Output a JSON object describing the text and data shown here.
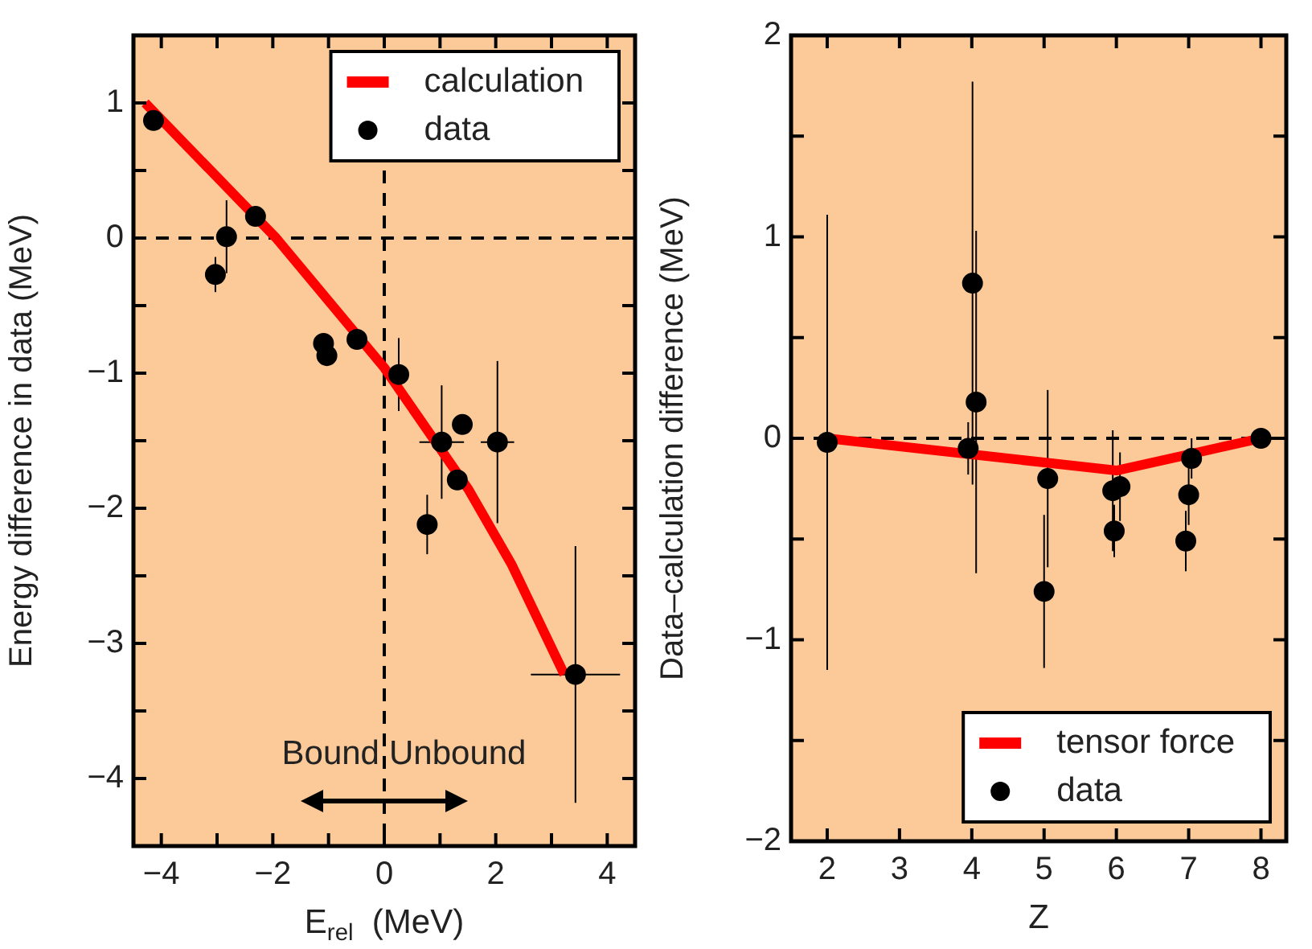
{
  "chart_data": [
    {
      "type": "scatter",
      "xlabel": "E$_{rel}$  (MeV)",
      "ylabel": "Energy difference in data (MeV)",
      "xlim": [
        -4.5,
        4.5
      ],
      "ylim": [
        -4.5,
        1.5
      ],
      "xticks": [
        -4,
        {
          "value": -3,
          "label": null
        },
        -2,
        {
          "value": -1,
          "label": null
        },
        0,
        {
          "value": 1,
          "label": null
        },
        2,
        {
          "value": 3,
          "label": null
        },
        4
      ],
      "yticks": [
        -4,
        {
          "value": -3.5,
          "label": null
        },
        -3,
        {
          "value": -2.5,
          "label": null
        },
        -2,
        {
          "value": -1.5,
          "label": null
        },
        -1,
        {
          "value": -0.5,
          "label": null
        },
        0,
        {
          "value": 0.5,
          "label": null
        },
        1
      ],
      "legend": "top right",
      "ref_lines": [
        {
          "axis": "y",
          "value": 0,
          "line_style": "dashed",
          "color": "#000000"
        },
        {
          "axis": "x",
          "value": 0,
          "line_style": "dashed",
          "color": "#000000"
        }
      ],
      "annotations": [
        "Bound",
        "Unbound"
      ],
      "series": [
        {
          "name": "calculation",
          "type": "line",
          "color": "#ff0000",
          "x": [
            -4.29,
            -1.94,
            0,
            1.51,
            2.29,
            3.23
          ],
          "values": [
            1.0,
            0,
            -0.96,
            -1.86,
            -2.42,
            -3.23
          ]
        },
        {
          "name": "data",
          "marker": "circle",
          "color": "#000000",
          "x": [
            -4.14,
            -3.03,
            -2.83,
            -2.31,
            -1.09,
            -1.03,
            -0.49,
            0.26,
            1.03,
            1.4,
            2.03,
            1.31,
            0.77,
            3.43
          ],
          "values": [
            0.87,
            -0.27,
            0.01,
            0.16,
            -0.78,
            -0.87,
            -0.75,
            -1.01,
            -1.51,
            -1.38,
            -1.51,
            -1.79,
            -2.12,
            -3.23
          ],
          "errors": [
            null,
            0.13,
            0.27,
            null,
            null,
            null,
            null,
            0.27,
            0.42,
            null,
            0.6,
            null,
            0.22,
            0.95
          ],
          "xerrors": [
            null,
            null,
            null,
            null,
            null,
            null,
            null,
            null,
            0.4,
            null,
            0.3,
            null,
            null,
            0.8
          ]
        }
      ]
    },
    {
      "type": "scatter",
      "xlabel": "Z",
      "ylabel": "Data–calculation difference (MeV)",
      "xlim": [
        1.5,
        8.35
      ],
      "ylim": [
        -2,
        2
      ],
      "xticks": [
        2,
        3,
        4,
        5,
        6,
        7,
        8
      ],
      "yticks": [
        -2,
        {
          "value": -1.5,
          "label": null
        },
        -1,
        {
          "value": -0.5,
          "label": null
        },
        0,
        {
          "value": 0.5,
          "label": null
        },
        1,
        {
          "value": 1.5,
          "label": null
        },
        2
      ],
      "legend": "bottom right",
      "ref_lines": [
        {
          "axis": "y",
          "value": 0,
          "line_style": "dashed",
          "color": "#000000"
        }
      ],
      "series": [
        {
          "name": "tensor force",
          "type": "line",
          "color": "#ff0000",
          "x": [
            2,
            4,
            5,
            6,
            7,
            8
          ],
          "values": [
            0,
            -0.08,
            -0.12,
            -0.16,
            -0.08,
            0
          ]
        },
        {
          "name": "data",
          "marker": "circle",
          "color": "#000000",
          "x": [
            2,
            3.95,
            4.01,
            4.06,
            5.0,
            5.05,
            5.95,
            5.97,
            6.05,
            6.96,
            7.0,
            7.04,
            8.0
          ],
          "values": [
            -0.02,
            -0.05,
            0.77,
            0.18,
            -0.76,
            -0.2,
            -0.26,
            -0.46,
            -0.24,
            -0.51,
            -0.28,
            -0.1,
            0.0
          ],
          "errors": [
            1.13,
            0.13,
            1.0,
            0.85,
            0.38,
            0.44,
            0.3,
            0.13,
            0.17,
            0.15,
            0.15,
            0.1,
            null
          ]
        }
      ]
    }
  ]
}
